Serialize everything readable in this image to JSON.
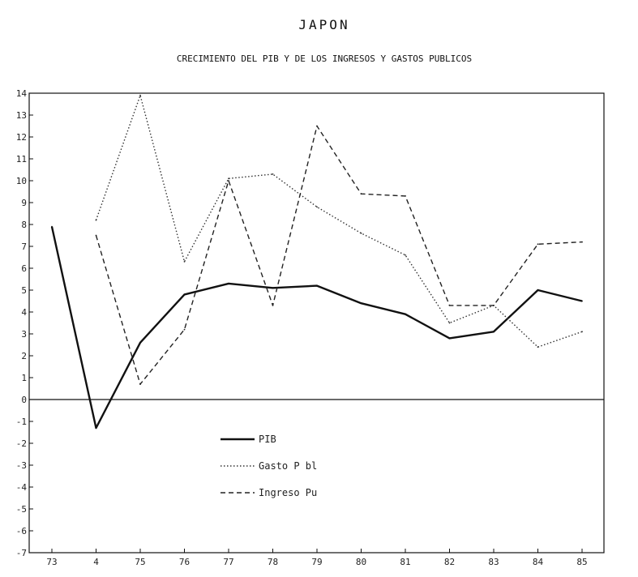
{
  "chart_data": {
    "type": "line",
    "title": "JAPON",
    "subtitle": "CRECIMIENTO DEL PIB Y DE LOS INGRESOS Y GASTOS PUBLICOS",
    "xlabel": "",
    "ylabel": "",
    "categories": [
      "73",
      "4",
      "75",
      "76",
      "77",
      "78",
      "79",
      "80",
      "81",
      "82",
      "83",
      "84",
      "85"
    ],
    "ylim": [
      -7,
      14
    ],
    "yticks": [
      "14",
      "13",
      "12",
      "11",
      "10",
      "9",
      "8",
      "7",
      "6",
      "5",
      "4",
      "3",
      "2",
      "1",
      "0",
      "-1",
      "-2",
      "-3",
      "-4",
      "-5",
      "-6",
      "-7"
    ],
    "grid": false,
    "legend_position": "center-left",
    "series": [
      {
        "name": "PIB",
        "style": "solid",
        "color": "#111111",
        "values": [
          7.9,
          -1.3,
          2.6,
          4.8,
          5.3,
          5.1,
          5.2,
          4.4,
          3.9,
          2.8,
          3.1,
          5.0,
          4.5
        ]
      },
      {
        "name": "Gasto P bl",
        "style": "dotted",
        "color": "#333333",
        "values": [
          null,
          8.2,
          13.9,
          6.3,
          10.1,
          10.3,
          8.8,
          7.6,
          6.6,
          3.5,
          4.3,
          2.4,
          3.1
        ]
      },
      {
        "name": "Ingreso Pu",
        "style": "dashed",
        "color": "#222222",
        "values": [
          null,
          7.5,
          0.7,
          3.2,
          10.0,
          4.3,
          12.5,
          9.4,
          9.3,
          4.3,
          4.3,
          7.1,
          7.2
        ]
      }
    ]
  }
}
